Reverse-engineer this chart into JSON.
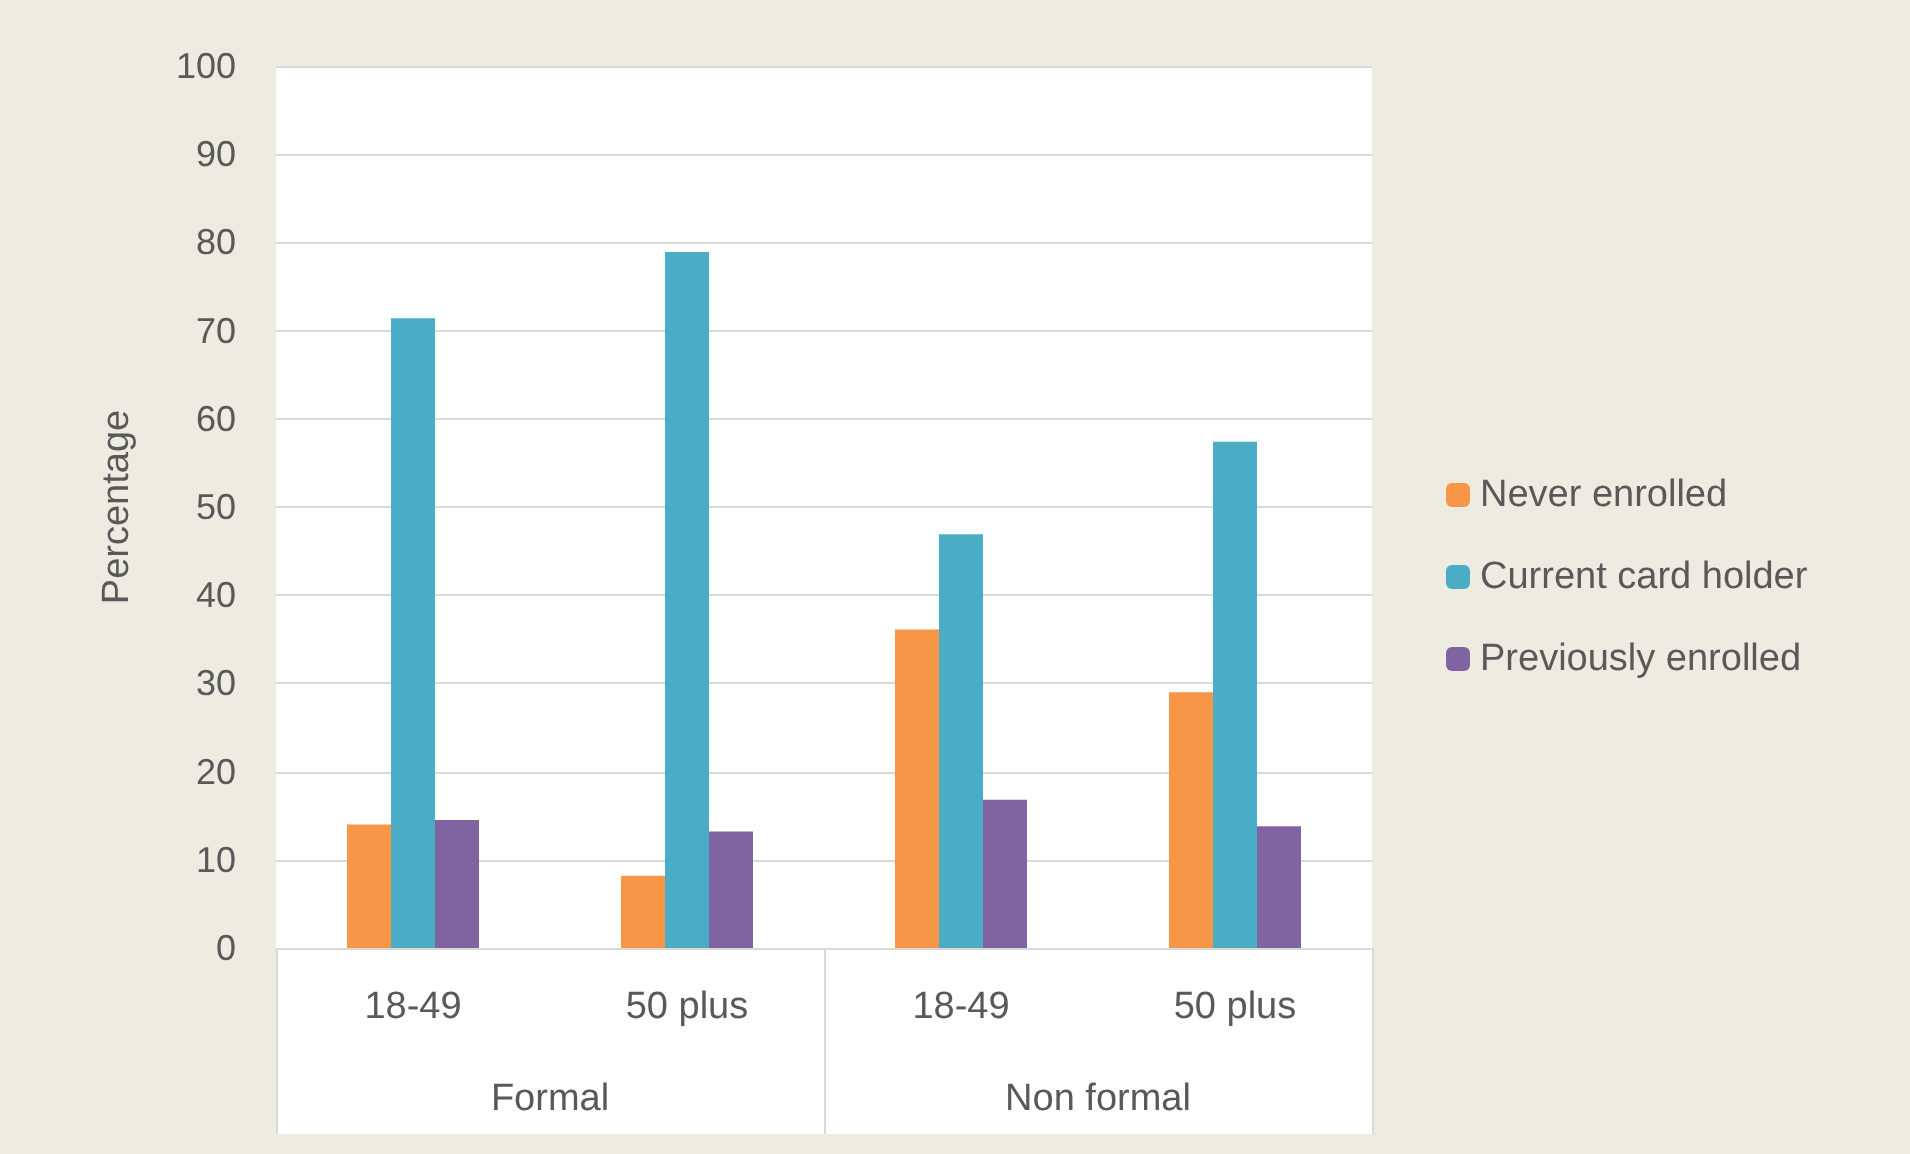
{
  "chart_data": {
    "type": "bar",
    "ylabel": "Percentage",
    "categories": [
      "18-49",
      "50 plus",
      "18-49",
      "50 plus"
    ],
    "annotations": [
      "Formal",
      "Non formal"
    ],
    "series": [
      {
        "name": "Never enrolled",
        "color": "#f79646",
        "values": [
          14,
          8.2,
          36.1,
          29
        ]
      },
      {
        "name": "Current card holder",
        "color": "#4bacc6",
        "values": [
          71.4,
          78.9,
          46.9,
          57.4
        ]
      },
      {
        "name": "Previously enrolled",
        "color": "#8064a2",
        "values": [
          14.5,
          13.2,
          16.8,
          13.8
        ]
      }
    ],
    "ylim": [
      0,
      100
    ],
    "yticks": [
      0,
      10,
      20,
      30,
      40,
      50,
      60,
      70,
      80,
      90,
      100
    ],
    "grid": "y",
    "legend": "right"
  }
}
